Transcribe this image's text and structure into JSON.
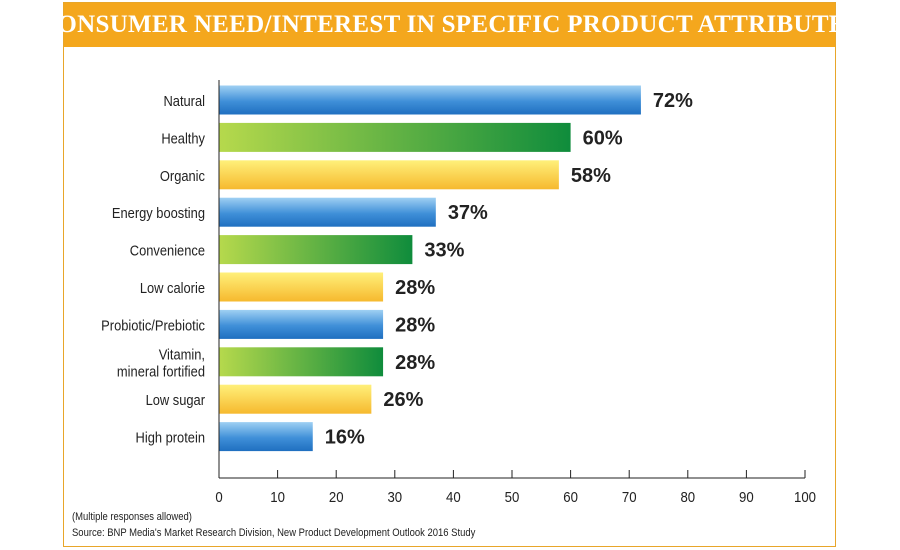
{
  "title": "CONSUMER NEED/INTEREST IN SPECIFIC PRODUCT ATTRIBUTES",
  "notes": {
    "multiple": "(Multiple responses allowed)",
    "source": "Source: BNP Media's Market Research Division, New Product Development Outlook 2016 Study"
  },
  "colors": {
    "header": "#f4a71d",
    "blue": [
      "#9fd0f3",
      "#1f6fc0"
    ],
    "green": [
      "#b6d94c",
      "#0f8c3c"
    ],
    "yellow": [
      "#fff07a",
      "#f6b92e"
    ]
  },
  "chart_data": {
    "type": "bar",
    "orientation": "horizontal",
    "title": "CONSUMER NEED/INTEREST IN SPECIFIC PRODUCT ATTRIBUTES",
    "categories": [
      [
        "Natural"
      ],
      [
        "Healthy"
      ],
      [
        "Organic"
      ],
      [
        "Energy boosting"
      ],
      [
        "Convenience"
      ],
      [
        "Low calorie"
      ],
      [
        "Probiotic/Prebiotic"
      ],
      [
        "Vitamin,",
        "mineral fortified"
      ],
      [
        "Low sugar"
      ],
      [
        "High protein"
      ]
    ],
    "values": [
      72,
      60,
      58,
      37,
      33,
      28,
      28,
      28,
      26,
      16
    ],
    "labels": [
      "72%",
      "60%",
      "58%",
      "37%",
      "33%",
      "28%",
      "28%",
      "28%",
      "26%",
      "16%"
    ],
    "bar_colors": [
      "blue",
      "green",
      "yellow",
      "blue",
      "green",
      "yellow",
      "blue",
      "green",
      "yellow",
      "blue"
    ],
    "xlim": [
      0,
      100
    ],
    "xticks": [
      0,
      10,
      20,
      30,
      40,
      50,
      60,
      70,
      80,
      90,
      100
    ],
    "xlabel": "",
    "ylabel": ""
  }
}
